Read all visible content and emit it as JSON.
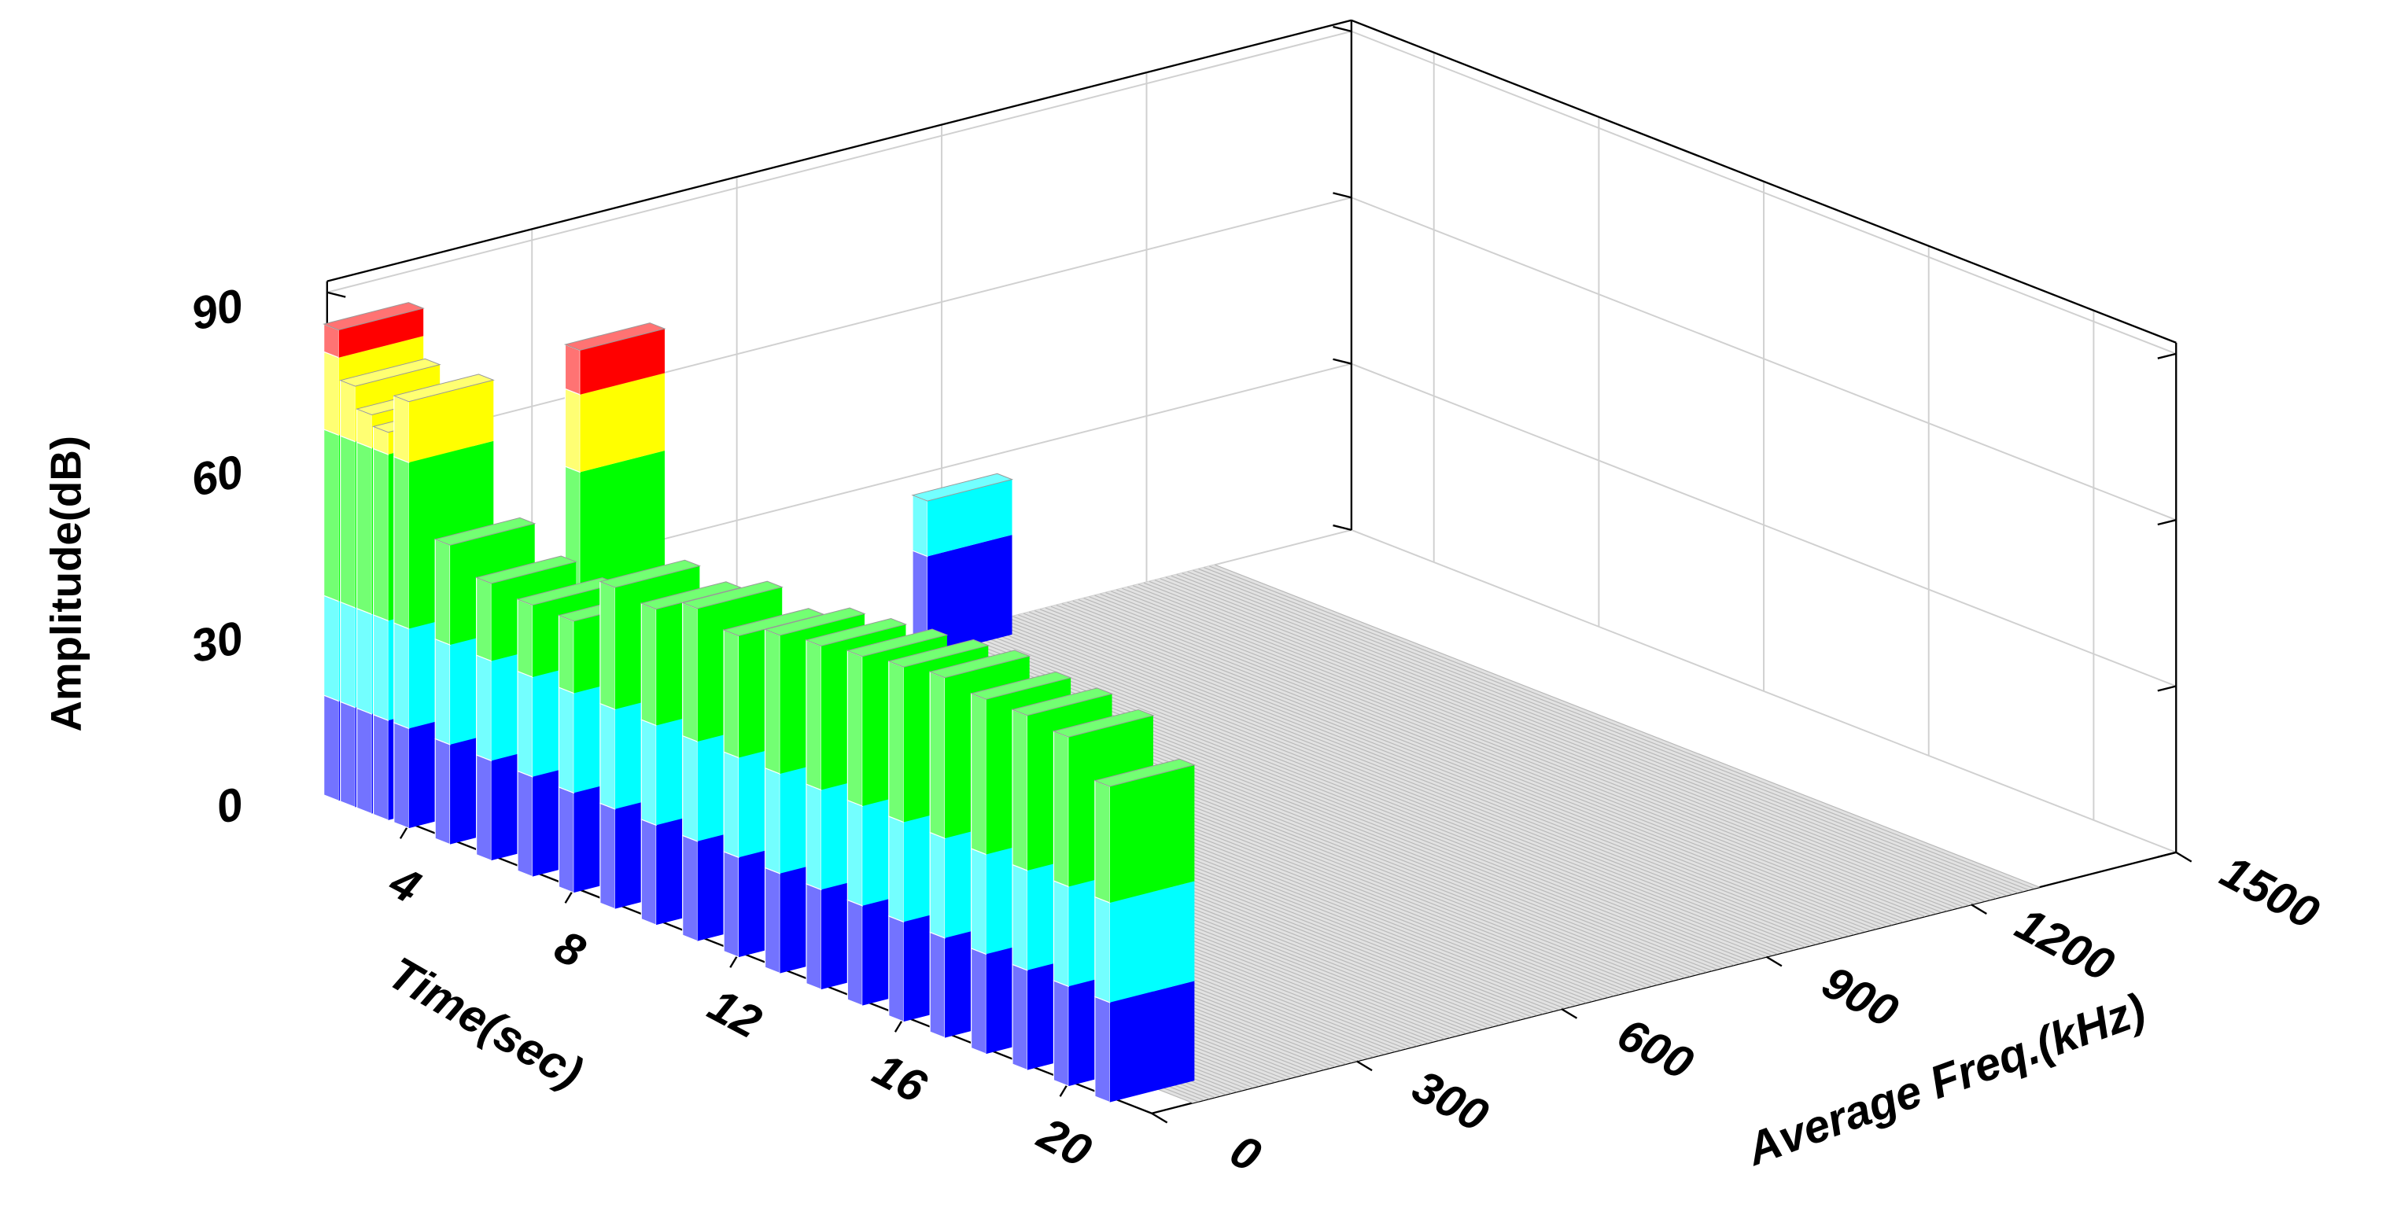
{
  "chart_data": {
    "type": "bar3d",
    "x_label": "Time(sec)",
    "y_label": "Average Freq.(kHz)",
    "z_label": "Amplitude(dB)",
    "xlim": [
      2,
      22
    ],
    "xticks": [
      4,
      8,
      12,
      16,
      20
    ],
    "ylim": [
      0,
      1500
    ],
    "yticks": [
      0,
      300,
      600,
      900,
      1200,
      1500
    ],
    "zlim": [
      0,
      92
    ],
    "zticks": [
      0,
      30,
      60,
      90
    ],
    "grid": true,
    "color_bands": {
      "edges": [
        0,
        18,
        36,
        66,
        80
      ],
      "colors": [
        "#0000ff",
        "#00ffff",
        "#00ff00",
        "#ffff00",
        "#ff0000"
      ]
    },
    "bars": {
      "time": [
        2.3,
        2.7,
        3.1,
        3.5,
        2.5,
        6,
        4,
        5,
        6,
        7,
        8,
        9,
        10,
        11,
        12,
        13,
        14,
        15,
        16,
        17,
        18,
        19,
        20,
        21
      ],
      "freq": [
        50,
        50,
        50,
        50,
        900,
        180,
        50,
        50,
        50,
        50,
        50,
        50,
        50,
        50,
        50,
        50,
        50,
        50,
        50,
        50,
        50,
        50,
        50,
        50
      ],
      "values": [
        85,
        76,
        72,
        70,
        28,
        88,
        77,
        54,
        50,
        49,
        49,
        58,
        57,
        60,
        58,
        61,
        62,
        63,
        64,
        65,
        64,
        64,
        63,
        57
      ]
    }
  }
}
